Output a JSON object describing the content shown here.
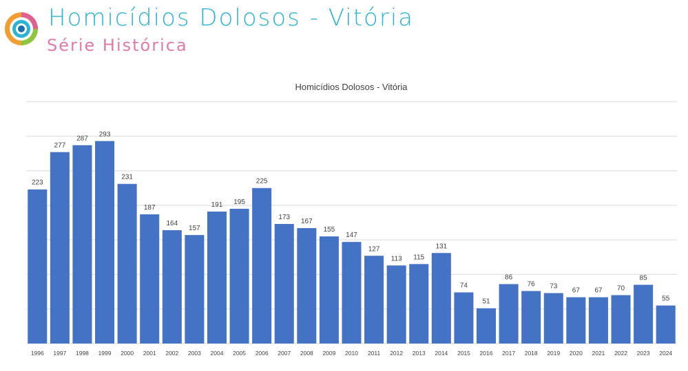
{
  "header": {
    "title": "Homicídios Dolosos - Vitória",
    "subtitle": "Série Histórica",
    "logo_icon": "concentric-circles-logo-icon"
  },
  "colors": {
    "title": "#2bb3d6",
    "subtitle": "#e07aa8",
    "bar": "#4472c4"
  },
  "chart_data": {
    "type": "bar",
    "title": "Homicídios Dolosos - Vitória",
    "xlabel": "",
    "ylabel": "",
    "categories": [
      "1996",
      "1997",
      "1998",
      "1999",
      "2000",
      "2001",
      "2002",
      "2003",
      "2004",
      "2005",
      "2006",
      "2007",
      "2008",
      "2009",
      "2010",
      "2011",
      "2012",
      "2013",
      "2014",
      "2015",
      "2016",
      "2017",
      "2018",
      "2019",
      "2020",
      "2021",
      "2022",
      "2023",
      "2024"
    ],
    "values": [
      223,
      277,
      287,
      293,
      231,
      187,
      164,
      157,
      191,
      195,
      225,
      173,
      167,
      155,
      147,
      127,
      113,
      115,
      131,
      74,
      51,
      86,
      76,
      73,
      67,
      67,
      70,
      85,
      55
    ],
    "ylim": [
      0,
      350
    ],
    "grid": true,
    "data_labels": true,
    "legend": "none"
  }
}
